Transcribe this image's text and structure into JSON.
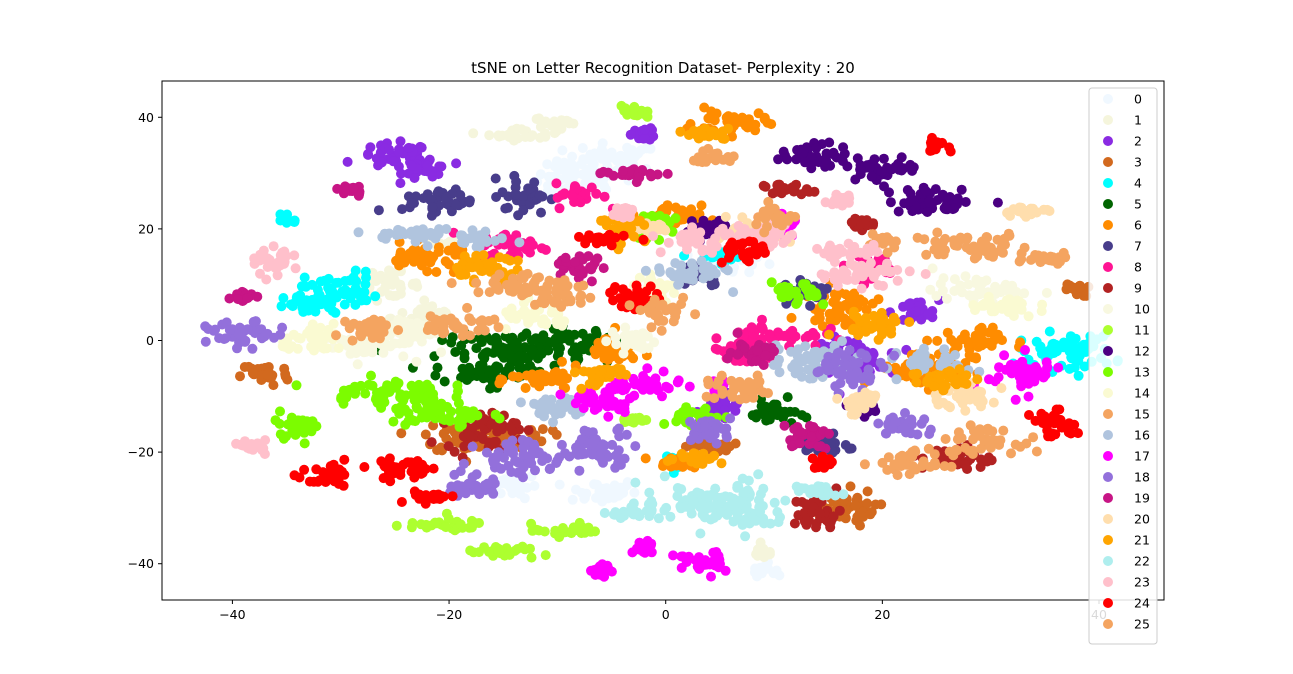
{
  "chart_data": {
    "type": "scatter",
    "title": "tSNE on Letter Recognition Dataset- Perplexity : 20",
    "xlabel": "",
    "ylabel": "",
    "xlim": [
      -46.5,
      46.0
    ],
    "ylim": [
      -46.5,
      46.5
    ],
    "xticks": [
      -40,
      -20,
      0,
      20,
      40
    ],
    "yticks": [
      -40,
      -20,
      0,
      20,
      40
    ],
    "xtick_labels": [
      "−40",
      "−20",
      "0",
      "20",
      "40"
    ],
    "ytick_labels": [
      "−40",
      "−20",
      "0",
      "20",
      "40"
    ],
    "grid": false,
    "legend_position": "right",
    "series": [
      {
        "name": "0",
        "color": "#f0f8ff",
        "clusters": [
          [
            -5,
            32,
            4,
            3
          ],
          [
            -9,
            28,
            3,
            3
          ],
          [
            -6,
            -27,
            3,
            2
          ],
          [
            -14,
            -26,
            2,
            2
          ],
          [
            9,
            -41,
            1,
            1
          ],
          [
            5,
            14,
            3,
            2
          ]
        ]
      },
      {
        "name": "1",
        "color": "#f5f5dc",
        "clusters": [
          [
            -13,
            37,
            3,
            1
          ],
          [
            -10,
            39,
            2,
            1
          ],
          [
            -26,
            10,
            3,
            2
          ],
          [
            -22,
            4,
            3,
            2
          ],
          [
            9,
            -38,
            1,
            1
          ],
          [
            -21,
            17,
            2,
            1
          ]
        ]
      },
      {
        "name": "2",
        "color": "#8a2be2",
        "clusters": [
          [
            -25,
            33,
            3,
            2
          ],
          [
            -22,
            31,
            2,
            2
          ],
          [
            -2,
            37,
            1,
            1
          ],
          [
            5,
            -12,
            2,
            2
          ],
          [
            17,
            -3,
            3,
            3
          ],
          [
            23,
            5,
            2,
            2
          ]
        ]
      },
      {
        "name": "3",
        "color": "#d2691e",
        "clusters": [
          [
            -37,
            -6,
            2,
            2
          ],
          [
            -18,
            -17,
            4,
            3
          ],
          [
            -14,
            -17,
            3,
            2
          ],
          [
            16,
            -30,
            3,
            3
          ],
          [
            38,
            9,
            1,
            1
          ],
          [
            4,
            -19,
            2,
            1
          ]
        ]
      },
      {
        "name": "4",
        "color": "#00ffff",
        "clusters": [
          [
            -30,
            9,
            3,
            3
          ],
          [
            -33,
            6,
            2,
            2
          ],
          [
            -35,
            22,
            1,
            1
          ],
          [
            37,
            -2,
            4,
            3
          ],
          [
            5,
            15,
            2,
            1
          ],
          [
            1,
            -22,
            1,
            1
          ]
        ]
      },
      {
        "name": "5",
        "color": "#006400",
        "clusters": [
          [
            -14,
            -2,
            6,
            3
          ],
          [
            -9,
            0,
            4,
            2
          ],
          [
            -16,
            -6,
            4,
            2
          ],
          [
            10,
            -13,
            2,
            2
          ]
        ]
      },
      {
        "name": "6",
        "color": "#ff8c00",
        "clusters": [
          [
            -22,
            15,
            4,
            2
          ],
          [
            -11,
            -7,
            3,
            2
          ],
          [
            -5,
            -2,
            2,
            3
          ],
          [
            6,
            39,
            3,
            2
          ],
          [
            16,
            6,
            3,
            3
          ],
          [
            24,
            -5,
            4,
            3
          ],
          [
            28,
            0,
            3,
            2
          ],
          [
            0,
            22,
            3,
            2
          ],
          [
            1,
            -22,
            2,
            1
          ]
        ]
      },
      {
        "name": "7",
        "color": "#483d8b",
        "clusters": [
          [
            -13,
            26,
            2,
            3
          ],
          [
            -21,
            25,
            3,
            2
          ],
          [
            15,
            -19,
            2,
            2
          ],
          [
            3,
            12,
            2,
            2
          ],
          [
            13,
            9,
            2,
            2
          ]
        ]
      },
      {
        "name": "8",
        "color": "#ff1493",
        "clusters": [
          [
            -8,
            26,
            2,
            2
          ],
          [
            -14,
            17,
            3,
            2
          ],
          [
            10,
            1,
            4,
            2
          ],
          [
            19,
            13,
            2,
            2
          ],
          [
            7,
            -2,
            3,
            2
          ]
        ]
      },
      {
        "name": "9",
        "color": "#b22222",
        "clusters": [
          [
            -17,
            -16,
            3,
            3
          ],
          [
            14,
            -31,
            2,
            3
          ],
          [
            27,
            -21,
            3,
            2
          ],
          [
            11,
            27,
            2,
            1
          ],
          [
            18,
            21,
            1,
            1
          ]
        ]
      },
      {
        "name": "10",
        "color": "#f8f8e0",
        "clusters": [
          [
            29,
            9,
            4,
            2
          ],
          [
            -28,
            -1,
            4,
            2
          ],
          [
            -24,
            2,
            3,
            2
          ],
          [
            -3,
            0,
            2,
            2
          ]
        ]
      },
      {
        "name": "11",
        "color": "#adff2f",
        "clusters": [
          [
            -21,
            -33,
            4,
            1
          ],
          [
            -15,
            -38,
            3,
            1
          ],
          [
            -9,
            -34,
            3,
            1
          ],
          [
            -3,
            41,
            1,
            1
          ],
          [
            -3,
            -14,
            1,
            1
          ]
        ]
      },
      {
        "name": "12",
        "color": "#4b0082",
        "clusters": [
          [
            14,
            33,
            3,
            2
          ],
          [
            20,
            31,
            3,
            2
          ],
          [
            25,
            25,
            4,
            2
          ],
          [
            4,
            20,
            2,
            2
          ],
          [
            18,
            -12,
            1,
            1
          ]
        ]
      },
      {
        "name": "13",
        "color": "#7cfc00",
        "clusters": [
          [
            -26,
            -9,
            5,
            2
          ],
          [
            -21,
            -13,
            4,
            3
          ],
          [
            -34,
            -15,
            2,
            2
          ],
          [
            12,
            8,
            2,
            2
          ],
          [
            3,
            -14,
            2,
            2
          ],
          [
            -1,
            21,
            2,
            2
          ]
        ]
      },
      {
        "name": "14",
        "color": "#fafad2",
        "clusters": [
          [
            -32,
            0,
            3,
            2
          ],
          [
            -12,
            4,
            3,
            2
          ],
          [
            -1,
            9,
            2,
            2
          ],
          [
            31,
            6,
            3,
            2
          ]
        ]
      },
      {
        "name": "15",
        "color": "#f4a460",
        "clusters": [
          [
            28,
            17,
            5,
            2
          ],
          [
            35,
            15,
            3,
            1
          ],
          [
            29,
            -18,
            3,
            2
          ],
          [
            23,
            -22,
            3,
            2
          ],
          [
            20,
            18,
            1,
            1
          ]
        ]
      },
      {
        "name": "16",
        "color": "#b0c4de",
        "clusters": [
          [
            -23,
            19,
            4,
            1
          ],
          [
            -18,
            18,
            3,
            1
          ],
          [
            -10,
            -12,
            3,
            2
          ],
          [
            2,
            12,
            3,
            2
          ],
          [
            14,
            -4,
            4,
            3
          ],
          [
            25,
            -4,
            3,
            2
          ]
        ]
      },
      {
        "name": "17",
        "color": "#ff00ff",
        "clusters": [
          [
            33,
            -6,
            3,
            3
          ],
          [
            -2,
            -8,
            3,
            2
          ],
          [
            -6,
            -11,
            3,
            2
          ],
          [
            3,
            -40,
            2,
            2
          ],
          [
            -2,
            -37,
            1,
            1
          ],
          [
            -6,
            -41,
            1,
            1
          ],
          [
            11,
            20,
            1,
            2
          ],
          [
            5,
            -8,
            1,
            1
          ]
        ]
      },
      {
        "name": "18",
        "color": "#9370db",
        "clusters": [
          [
            -39,
            1,
            3,
            2
          ],
          [
            -6,
            -19,
            3,
            3
          ],
          [
            -13,
            -21,
            4,
            3
          ],
          [
            4,
            -16,
            2,
            2
          ],
          [
            17,
            -5,
            3,
            3
          ],
          [
            22,
            -15,
            2,
            2
          ],
          [
            -18,
            -26,
            2,
            2
          ]
        ]
      },
      {
        "name": "19",
        "color": "#c71585",
        "clusters": [
          [
            -3,
            30,
            3,
            1
          ],
          [
            -8,
            13,
            2,
            2
          ],
          [
            -29,
            27,
            1,
            1
          ],
          [
            -39,
            8,
            1,
            1
          ],
          [
            13,
            -17,
            2,
            2
          ],
          [
            8,
            -2,
            2,
            2
          ]
        ]
      },
      {
        "name": "20",
        "color": "#ffdead",
        "clusters": [
          [
            33,
            23,
            2,
            1
          ],
          [
            18,
            -11,
            2,
            2
          ],
          [
            27,
            -10,
            3,
            2
          ],
          [
            8,
            19,
            3,
            2
          ],
          [
            -2,
            20,
            2,
            1
          ]
        ]
      },
      {
        "name": "21",
        "color": "#ffa500",
        "clusters": [
          [
            -17,
            13,
            3,
            2
          ],
          [
            -6,
            -6,
            2,
            2
          ],
          [
            -4,
            20,
            2,
            2
          ],
          [
            4,
            37,
            2,
            1
          ],
          [
            19,
            3,
            3,
            2
          ],
          [
            26,
            -7,
            3,
            2
          ],
          [
            3,
            -21,
            2,
            1
          ]
        ]
      },
      {
        "name": "22",
        "color": "#afeeee",
        "clusters": [
          [
            3,
            -29,
            5,
            3
          ],
          [
            8,
            -30,
            3,
            4
          ],
          [
            14,
            -27,
            2,
            1
          ],
          [
            -3,
            -31,
            2,
            1
          ]
        ]
      },
      {
        "name": "23",
        "color": "#ffc0cb",
        "clusters": [
          [
            -36,
            14,
            2,
            2
          ],
          [
            -38,
            -19,
            1,
            1
          ],
          [
            -4,
            23,
            1,
            1
          ],
          [
            18,
            12,
            4,
            2
          ],
          [
            17,
            16,
            3,
            1
          ],
          [
            16,
            25,
            1,
            1
          ],
          [
            3,
            18,
            3,
            2
          ],
          [
            9,
            19,
            3,
            2
          ]
        ]
      },
      {
        "name": "24",
        "color": "#ff0000",
        "clusters": [
          [
            -31,
            -25,
            2,
            2
          ],
          [
            -24,
            -23,
            3,
            2
          ],
          [
            -22,
            -28,
            2,
            1
          ],
          [
            -6,
            18,
            2,
            1
          ],
          [
            7,
            16,
            2,
            2
          ],
          [
            25,
            35,
            1,
            1
          ],
          [
            36,
            -15,
            2,
            2
          ],
          [
            15,
            -22,
            2,
            1
          ],
          [
            -3,
            8,
            2,
            2
          ]
        ]
      },
      {
        "name": "25",
        "color": "#f4a460",
        "clusters": [
          [
            -13,
            10,
            4,
            2
          ],
          [
            -19,
            3,
            3,
            2
          ],
          [
            -10,
            8,
            3,
            2
          ],
          [
            0,
            5,
            2,
            2
          ],
          [
            7,
            -9,
            3,
            2
          ],
          [
            10,
            22,
            2,
            2
          ],
          [
            4,
            33,
            2,
            1
          ],
          [
            -27,
            2,
            2,
            2
          ]
        ]
      }
    ]
  }
}
